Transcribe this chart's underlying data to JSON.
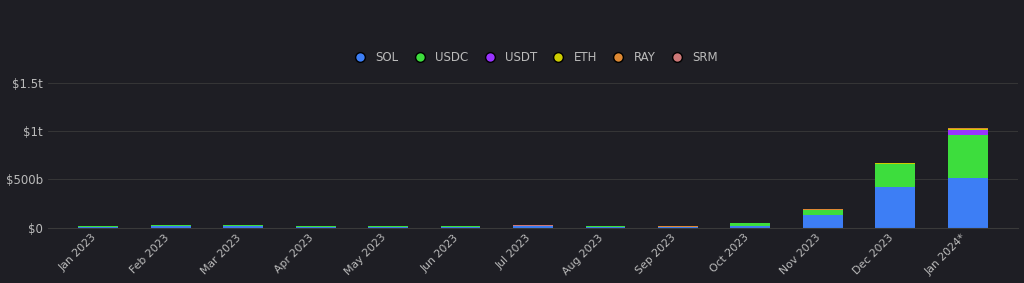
{
  "months": [
    "Jan 2023",
    "Feb 2023",
    "Mar 2023",
    "Apr 2023",
    "May 2023",
    "Jun 2023",
    "Jul 2023",
    "Aug 2023",
    "Sep 2023",
    "Oct 2023",
    "Nov 2023",
    "Dec 2023",
    "Jan 2024*"
  ],
  "series": {
    "SOL": [
      8,
      12,
      15,
      10,
      10,
      8,
      12,
      8,
      5,
      12,
      130,
      420,
      520
    ],
    "USDC": [
      6,
      10,
      12,
      8,
      9,
      6,
      8,
      6,
      4,
      35,
      55,
      240,
      440
    ],
    "USDT": [
      0.5,
      0.5,
      0.5,
      0.5,
      0.5,
      0.5,
      1,
      2,
      2,
      1.5,
      2,
      4,
      55
    ],
    "ETH": [
      0.3,
      0.3,
      0.3,
      0.3,
      0.3,
      0.3,
      0.3,
      0.3,
      0.3,
      0.3,
      1,
      3,
      10
    ],
    "RAY": [
      0.3,
      0.5,
      0.5,
      0.3,
      0.3,
      0.3,
      0.3,
      0.3,
      0.3,
      0.5,
      1,
      3,
      6
    ],
    "SRM": [
      0.2,
      0.2,
      0.2,
      0.2,
      0.2,
      0.2,
      0.2,
      0.2,
      0.2,
      0.2,
      0.5,
      1.5,
      3
    ]
  },
  "colors": {
    "SOL": "#3d7ef5",
    "USDC": "#3ddd3d",
    "USDT": "#9933ff",
    "ETH": "#cccc00",
    "RAY": "#dd8833",
    "SRM": "#cc7777"
  },
  "background_color": "#1e1e24",
  "text_color": "#bbbbbb",
  "grid_color": "#3a3a3a",
  "ylim": [
    0,
    1500
  ],
  "yticks": [
    0,
    500,
    1000,
    1500
  ],
  "ytick_labels": [
    "$0",
    "$500b",
    "$1t",
    "$1.5t"
  ]
}
